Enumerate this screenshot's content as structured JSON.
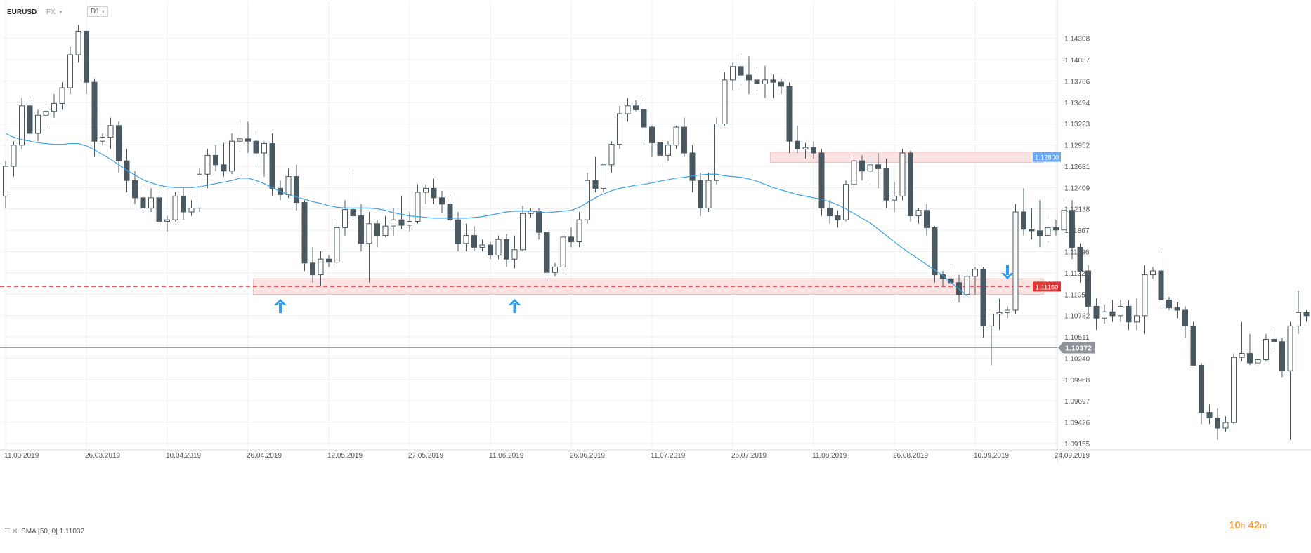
{
  "header": {
    "symbol": "EURUSD",
    "market": "FX",
    "timeframe": "D1"
  },
  "indicator": {
    "label": "SMA [50, 0] 1.11032"
  },
  "timer": {
    "hours": "10",
    "h_unit": "h",
    "minutes": "42",
    "m_unit": "m"
  },
  "colors": {
    "bull": "#ffffff",
    "bear": "#4a5862",
    "wick": "#4a5862",
    "sma": "#3ba0e6",
    "zone_fill": "#fbe0e0",
    "zone_stroke": "#f3b5b5",
    "support_line": "#e84a4a",
    "resistance_line": "#5b8fd9",
    "price_line": "#9aa0a6",
    "grid": "#eceff2"
  },
  "chart_data": {
    "type": "candlestick",
    "symbol": "EURUSD",
    "interval": "D1",
    "ylim": [
      1.091,
      1.146
    ],
    "y_ticks": [
      "1.14308",
      "1.14037",
      "1.13766",
      "1.13494",
      "1.13223",
      "1.12952",
      "1.12681",
      "1.12409",
      "1.12138",
      "1.11867",
      "1.11596",
      "1.11325",
      "1.11053",
      "1.10782",
      "1.10511",
      "1.10240",
      "1.09968",
      "1.09697",
      "1.09426",
      "1.09155"
    ],
    "x_ticks": [
      {
        "index": 0,
        "label": "11.03.2019"
      },
      {
        "index": 10,
        "label": "26.03.2019"
      },
      {
        "index": 20,
        "label": "10.04.2019"
      },
      {
        "index": 30,
        "label": "26.04.2019"
      },
      {
        "index": 40,
        "label": "12.05.2019"
      },
      {
        "index": 50,
        "label": "27.05.2019"
      },
      {
        "index": 60,
        "label": "11.06.2019"
      },
      {
        "index": 70,
        "label": "26.06.2019"
      },
      {
        "index": 80,
        "label": "11.07.2019"
      },
      {
        "index": 90,
        "label": "26.07.2019"
      },
      {
        "index": 100,
        "label": "11.08.2019"
      },
      {
        "index": 110,
        "label": "26.08.2019"
      },
      {
        "index": 120,
        "label": "10.09.2019"
      },
      {
        "index": 130,
        "label": "24.09.2019"
      }
    ],
    "candles": [
      [
        1.123,
        1.1275,
        1.1215,
        1.1268
      ],
      [
        1.1268,
        1.13,
        1.1255,
        1.1295
      ],
      [
        1.1295,
        1.1355,
        1.129,
        1.1345
      ],
      [
        1.1345,
        1.1352,
        1.13,
        1.131
      ],
      [
        1.131,
        1.134,
        1.13,
        1.1333
      ],
      [
        1.1333,
        1.1348,
        1.132,
        1.1338
      ],
      [
        1.1338,
        1.136,
        1.133,
        1.1348
      ],
      [
        1.1348,
        1.1375,
        1.134,
        1.1368
      ],
      [
        1.1368,
        1.142,
        1.136,
        1.141
      ],
      [
        1.141,
        1.1448,
        1.14,
        1.144
      ],
      [
        1.144,
        1.144,
        1.136,
        1.1375
      ],
      [
        1.1375,
        1.138,
        1.128,
        1.13
      ],
      [
        1.13,
        1.131,
        1.1295,
        1.1305
      ],
      [
        1.1305,
        1.133,
        1.129,
        1.132
      ],
      [
        1.132,
        1.1325,
        1.126,
        1.1275
      ],
      [
        1.1275,
        1.129,
        1.1235,
        1.125
      ],
      [
        1.125,
        1.1262,
        1.122,
        1.1228
      ],
      [
        1.1228,
        1.124,
        1.121,
        1.1215
      ],
      [
        1.1215,
        1.124,
        1.121,
        1.1228
      ],
      [
        1.1228,
        1.1235,
        1.119,
        1.1198
      ],
      [
        1.1198,
        1.1205,
        1.1185,
        1.12
      ],
      [
        1.12,
        1.1235,
        1.1198,
        1.123
      ],
      [
        1.123,
        1.124,
        1.12,
        1.121
      ],
      [
        1.121,
        1.1225,
        1.1205,
        1.1215
      ],
      [
        1.1215,
        1.1265,
        1.121,
        1.1258
      ],
      [
        1.1258,
        1.129,
        1.124,
        1.1282
      ],
      [
        1.1282,
        1.1295,
        1.1262,
        1.127
      ],
      [
        1.127,
        1.1298,
        1.1255,
        1.1262
      ],
      [
        1.1262,
        1.131,
        1.1258,
        1.13
      ],
      [
        1.13,
        1.1325,
        1.129,
        1.1303
      ],
      [
        1.1303,
        1.1325,
        1.1285,
        1.13
      ],
      [
        1.13,
        1.1315,
        1.127,
        1.1285
      ],
      [
        1.1285,
        1.13,
        1.1255,
        1.1297
      ],
      [
        1.1297,
        1.131,
        1.123,
        1.124
      ],
      [
        1.124,
        1.125,
        1.1225,
        1.1232
      ],
      [
        1.1232,
        1.1265,
        1.1228,
        1.1255
      ],
      [
        1.1255,
        1.127,
        1.1212,
        1.1222
      ],
      [
        1.1222,
        1.1225,
        1.1135,
        1.1145
      ],
      [
        1.1145,
        1.1165,
        1.112,
        1.113
      ],
      [
        1.113,
        1.116,
        1.1115,
        1.115
      ],
      [
        1.115,
        1.1155,
        1.114,
        1.1146
      ],
      [
        1.1146,
        1.12,
        1.114,
        1.119
      ],
      [
        1.119,
        1.1225,
        1.118,
        1.1213
      ],
      [
        1.1213,
        1.126,
        1.12,
        1.1205
      ],
      [
        1.1205,
        1.122,
        1.116,
        1.117
      ],
      [
        1.117,
        1.121,
        1.112,
        1.1195
      ],
      [
        1.1195,
        1.12,
        1.1165,
        1.118
      ],
      [
        1.118,
        1.1205,
        1.1178,
        1.1192
      ],
      [
        1.1192,
        1.1215,
        1.118,
        1.12
      ],
      [
        1.12,
        1.123,
        1.1188,
        1.1193
      ],
      [
        1.1193,
        1.121,
        1.1185,
        1.1198
      ],
      [
        1.1198,
        1.1245,
        1.1195,
        1.1235
      ],
      [
        1.1235,
        1.1245,
        1.122,
        1.124
      ],
      [
        1.124,
        1.1252,
        1.122,
        1.1228
      ],
      [
        1.1228,
        1.1237,
        1.1208,
        1.122
      ],
      [
        1.122,
        1.1232,
        1.119,
        1.12
      ],
      [
        1.12,
        1.121,
        1.116,
        1.117
      ],
      [
        1.117,
        1.1195,
        1.116,
        1.118
      ],
      [
        1.118,
        1.1192,
        1.116,
        1.1165
      ],
      [
        1.1165,
        1.1175,
        1.116,
        1.1168
      ],
      [
        1.1168,
        1.1172,
        1.115,
        1.1155
      ],
      [
        1.1155,
        1.118,
        1.115,
        1.1175
      ],
      [
        1.1175,
        1.1182,
        1.114,
        1.115
      ],
      [
        1.115,
        1.118,
        1.1138,
        1.1162
      ],
      [
        1.1162,
        1.1218,
        1.116,
        1.1208
      ],
      [
        1.1208,
        1.1215,
        1.1203,
        1.1211
      ],
      [
        1.1211,
        1.1215,
        1.1175,
        1.1184
      ],
      [
        1.1184,
        1.119,
        1.1125,
        1.1133
      ],
      [
        1.1133,
        1.1145,
        1.1128,
        1.114
      ],
      [
        1.114,
        1.1185,
        1.1135,
        1.1178
      ],
      [
        1.1178,
        1.119,
        1.1165,
        1.1172
      ],
      [
        1.1172,
        1.121,
        1.1165,
        1.12
      ],
      [
        1.12,
        1.126,
        1.1195,
        1.125
      ],
      [
        1.125,
        1.128,
        1.1235,
        1.124
      ],
      [
        1.124,
        1.127,
        1.1235,
        1.127
      ],
      [
        1.127,
        1.13,
        1.126,
        1.1296
      ],
      [
        1.1296,
        1.1345,
        1.129,
        1.1335
      ],
      [
        1.1335,
        1.1355,
        1.1325,
        1.1345
      ],
      [
        1.1345,
        1.1352,
        1.1338,
        1.134
      ],
      [
        1.134,
        1.1352,
        1.13,
        1.1318
      ],
      [
        1.1318,
        1.132,
        1.128,
        1.1298
      ],
      [
        1.1298,
        1.13,
        1.127,
        1.1282
      ],
      [
        1.1282,
        1.13,
        1.1275,
        1.1295
      ],
      [
        1.1295,
        1.132,
        1.129,
        1.1318
      ],
      [
        1.1318,
        1.133,
        1.128,
        1.1285
      ],
      [
        1.1285,
        1.1295,
        1.1235,
        1.125
      ],
      [
        1.125,
        1.126,
        1.1205,
        1.1215
      ],
      [
        1.1215,
        1.126,
        1.121,
        1.125
      ],
      [
        1.125,
        1.133,
        1.1245,
        1.1322
      ],
      [
        1.1322,
        1.1388,
        1.132,
        1.1378
      ],
      [
        1.1378,
        1.14,
        1.1365,
        1.1395
      ],
      [
        1.1395,
        1.1412,
        1.1372,
        1.1384
      ],
      [
        1.1384,
        1.1408,
        1.136,
        1.1378
      ],
      [
        1.1378,
        1.139,
        1.136,
        1.1373
      ],
      [
        1.1373,
        1.1396,
        1.1355,
        1.1378
      ],
      [
        1.1378,
        1.1385,
        1.1355,
        1.1375
      ],
      [
        1.1375,
        1.138,
        1.136,
        1.137
      ],
      [
        1.137,
        1.1375,
        1.1285,
        1.13
      ],
      [
        1.13,
        1.132,
        1.1285,
        1.129
      ],
      [
        1.129,
        1.1298,
        1.1278,
        1.1292
      ],
      [
        1.1292,
        1.13,
        1.1278,
        1.1285
      ],
      [
        1.1285,
        1.129,
        1.1205,
        1.1215
      ],
      [
        1.1215,
        1.1225,
        1.1195,
        1.1205
      ],
      [
        1.1205,
        1.1212,
        1.119,
        1.12
      ],
      [
        1.12,
        1.125,
        1.1198,
        1.1245
      ],
      [
        1.1245,
        1.1282,
        1.1238,
        1.1275
      ],
      [
        1.1275,
        1.1282,
        1.125,
        1.1262
      ],
      [
        1.1262,
        1.128,
        1.1245,
        1.127
      ]
    ],
    "candles_late": [
      [
        1.127,
        1.1285,
        1.124,
        1.1265
      ],
      [
        1.1265,
        1.1278,
        1.1215,
        1.1225
      ],
      [
        1.1225,
        1.1248,
        1.121,
        1.123
      ],
      [
        1.123,
        1.129,
        1.1225,
        1.1285
      ],
      [
        1.1285,
        1.1288,
        1.1198,
        1.1205
      ],
      [
        1.1205,
        1.1215,
        1.1195,
        1.1212
      ],
      [
        1.1212,
        1.122,
        1.118,
        1.119
      ],
      [
        1.119,
        1.1192,
        1.112,
        1.113
      ],
      [
        1.113,
        1.1135,
        1.1115,
        1.1125
      ],
      [
        1.1125,
        1.114,
        1.11,
        1.112
      ],
      [
        1.112,
        1.113,
        1.1095,
        1.1105
      ],
      [
        1.1105,
        1.1132,
        1.1102,
        1.1128
      ],
      [
        1.1128,
        1.114,
        1.1105,
        1.1137
      ],
      [
        1.1137,
        1.114,
        1.105,
        1.1065
      ],
      [
        1.1065,
        1.1068,
        1.1015,
        1.108
      ],
      [
        1.108,
        1.11,
        1.106,
        1.1082
      ],
      [
        1.1082,
        1.109,
        1.1075,
        1.1085
      ],
      [
        1.1085,
        1.122,
        1.108,
        1.121
      ],
      [
        1.121,
        1.124,
        1.118,
        1.1188
      ],
      [
        1.1188,
        1.1215,
        1.1175,
        1.1186
      ],
      [
        1.1186,
        1.1225,
        1.1165,
        1.118
      ],
      [
        1.118,
        1.1208,
        1.1172,
        1.119
      ],
      [
        1.119,
        1.12,
        1.118,
        1.1187
      ],
      [
        1.1187,
        1.1225,
        1.1175,
        1.1212
      ],
      [
        1.1212,
        1.1225,
        1.115,
        1.1165
      ],
      [
        1.1165,
        1.117,
        1.112,
        1.1135
      ],
      [
        1.1135,
        1.1142,
        1.108,
        1.109
      ],
      [
        1.109,
        1.11,
        1.106,
        1.1075
      ],
      [
        1.1075,
        1.1092,
        1.1068,
        1.1083
      ],
      [
        1.1083,
        1.1098,
        1.107,
        1.1078
      ],
      [
        1.1078,
        1.1098,
        1.107,
        1.109
      ],
      [
        1.109,
        1.1098,
        1.106,
        1.107
      ]
    ],
    "candles_end": [
      [
        1.107,
        1.11,
        1.106,
        1.1078
      ],
      [
        1.1078,
        1.1142,
        1.1055,
        1.113
      ],
      [
        1.113,
        1.114,
        1.1125,
        1.1135
      ],
      [
        1.1135,
        1.116,
        1.109,
        1.1098
      ],
      [
        1.1098,
        1.1102,
        1.1085,
        1.1088
      ],
      [
        1.1088,
        1.1095,
        1.1075,
        1.1085
      ],
      [
        1.1085,
        1.109,
        1.105,
        1.1065
      ],
      [
        1.1065,
        1.107,
        1.1032,
        1.1015
      ],
      [
        1.1015,
        1.1018,
        1.094,
        1.0955
      ],
      [
        1.0955,
        1.0965,
        1.094,
        1.0948
      ],
      [
        1.0948,
        1.096,
        1.092,
        1.0935
      ],
      [
        1.0935,
        1.095,
        1.093,
        1.0942
      ],
      [
        1.0942,
        1.103,
        1.094,
        1.1025
      ],
      [
        1.1025,
        1.107,
        1.102,
        1.103
      ],
      [
        1.103,
        1.1055,
        1.1015,
        1.1018
      ],
      [
        1.1018,
        1.1028,
        1.1015,
        1.1022
      ],
      [
        1.1022,
        1.1055,
        1.102,
        1.1048
      ],
      [
        1.1048,
        1.106,
        1.1035,
        1.1045
      ],
      [
        1.1045,
        1.105,
        1.1,
        1.1008
      ],
      [
        1.1008,
        1.107,
        1.092,
        1.1065
      ],
      [
        1.1065,
        1.111,
        1.1055,
        1.1082
      ],
      [
        1.1082,
        1.1085,
        1.107,
        1.1078
      ],
      [
        1.1078,
        1.1088,
        1.1035,
        1.1037
      ]
    ],
    "sma": [
      1.131,
      1.1305,
      1.1302,
      1.13,
      1.1298,
      1.1297,
      1.1296,
      1.1296,
      1.1297,
      1.1297,
      1.1294,
      1.1289,
      1.1283,
      1.1277,
      1.127,
      1.1263,
      1.1257,
      1.1251,
      1.1247,
      1.1244,
      1.1242,
      1.1241,
      1.1241,
      1.1241,
      1.1242,
      1.1244,
      1.1246,
      1.1248,
      1.125,
      1.1253,
      1.1253,
      1.125,
      1.1246,
      1.1241,
      1.1236,
      1.1232,
      1.1229,
      1.1226,
      1.1223,
      1.1221,
      1.1218,
      1.1216,
      1.1215,
      1.1215,
      1.1215,
      1.1215,
      1.1214,
      1.1212,
      1.1209,
      1.1207,
      1.1205,
      1.1204,
      1.1203,
      1.1202,
      1.1202,
      1.1202,
      1.1202,
      1.1202,
      1.1203,
      1.1204,
      1.1206,
      1.1208,
      1.121,
      1.1211,
      1.1211,
      1.1211,
      1.121,
      1.1209,
      1.121,
      1.1211,
      1.1212,
      1.1216,
      1.1222,
      1.1228,
      1.1233,
      1.1237,
      1.124,
      1.1242,
      1.1244,
      1.1245,
      1.1247,
      1.1249,
      1.1251,
      1.1253,
      1.1254,
      1.1256,
      1.1257,
      1.1258,
      1.1258,
      1.1256,
      1.1255,
      1.1254,
      1.1252,
      1.1249,
      1.1245,
      1.1241,
      1.1238,
      1.1235,
      1.1232,
      1.123,
      1.1228,
      1.1226,
      1.1223,
      1.1219,
      1.1214,
      1.1208,
      1.1202,
      1.1196,
      1.1188,
      1.118,
      1.1172,
      1.1164,
      1.1157,
      1.115,
      1.1143,
      1.1136,
      1.1129,
      1.112,
      1.1112,
      1.1103
    ],
    "price_line": 1.10372,
    "price_label": "1.10372",
    "support_zone": [
      1.1105,
      1.1125
    ],
    "support_level": 1.1115,
    "support_label": "1.11150",
    "resistance_zone": [
      1.1273,
      1.1286
    ],
    "resistance_level": 1.128,
    "resistance_label": "1.12800",
    "arrows": [
      {
        "index": 34,
        "direction": "up"
      },
      {
        "index": 63,
        "direction": "up"
      },
      {
        "index": 124,
        "direction": "down"
      }
    ]
  }
}
